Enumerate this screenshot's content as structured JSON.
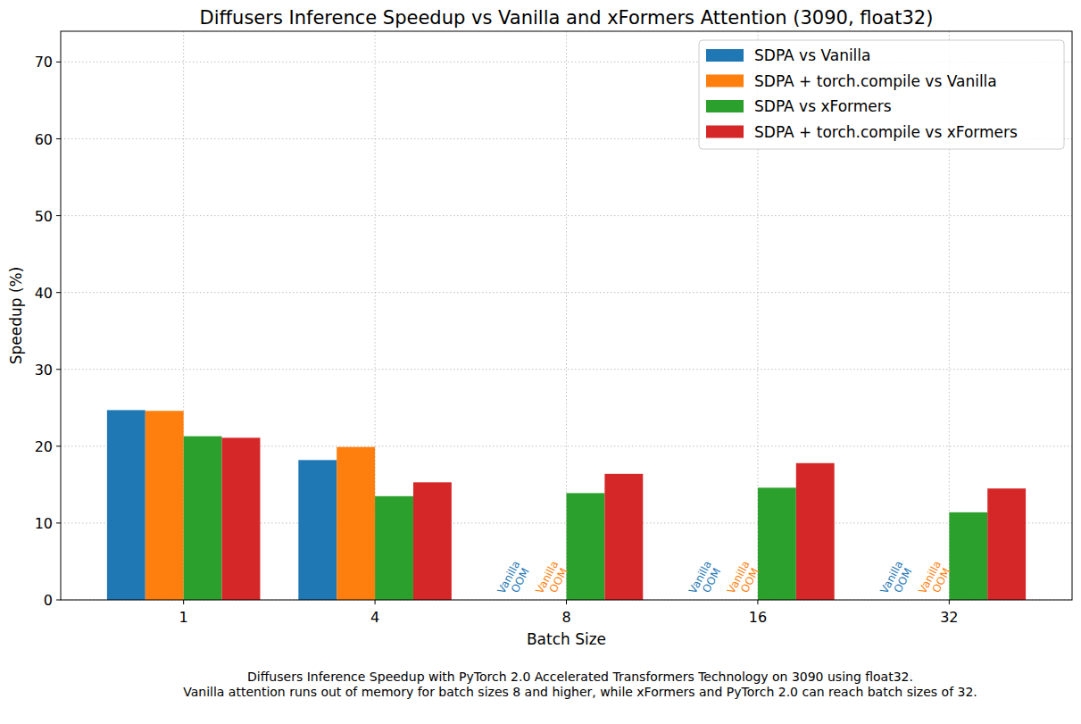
{
  "chart_data": {
    "type": "bar",
    "title": "Diffusers Inference Speedup vs Vanilla and xFormers Attention (3090, float32)",
    "x_label": "Batch Size",
    "y_label": "Speedup (%)",
    "categories": [
      "1",
      "4",
      "8",
      "16",
      "32"
    ],
    "series": [
      {
        "name": "SDPA vs Vanilla",
        "color": "#1f77b4",
        "values": [
          24.7,
          18.2,
          null,
          null,
          null
        ]
      },
      {
        "name": "SDPA + torch.compile vs Vanilla",
        "color": "#ff7f0e",
        "values": [
          24.6,
          19.9,
          null,
          null,
          null
        ]
      },
      {
        "name": "SDPA vs xFormers",
        "color": "#2ca02c",
        "values": [
          21.3,
          13.5,
          13.9,
          14.6,
          11.4
        ]
      },
      {
        "name": "SDPA + torch.compile vs xFormers",
        "color": "#d62728",
        "values": [
          21.1,
          15.3,
          16.4,
          17.8,
          14.5
        ]
      }
    ],
    "ylim": [
      0,
      74
    ],
    "yticks": [
      0,
      10,
      20,
      30,
      40,
      50,
      60,
      70
    ],
    "grid": true,
    "legend": "upper right",
    "annotations": [
      {
        "text": "Vanilla\nOOM",
        "series": 0,
        "category": 2
      },
      {
        "text": "Vanilla\nOOM",
        "series": 1,
        "category": 2
      },
      {
        "text": "Vanilla\nOOM",
        "series": 0,
        "category": 3
      },
      {
        "text": "Vanilla\nOOM",
        "series": 1,
        "category": 3
      },
      {
        "text": "Vanilla\nOOM",
        "series": 0,
        "category": 4
      },
      {
        "text": "Vanilla\nOOM",
        "series": 1,
        "category": 4
      }
    ],
    "caption": [
      "Diffusers Inference Speedup with PyTorch 2.0 Accelerated Transformers Technology on 3090 using float32.",
      "Vanilla attention runs out of memory for batch sizes 8 and higher, while xFormers and PyTorch 2.0 can reach batch sizes of 32."
    ]
  }
}
